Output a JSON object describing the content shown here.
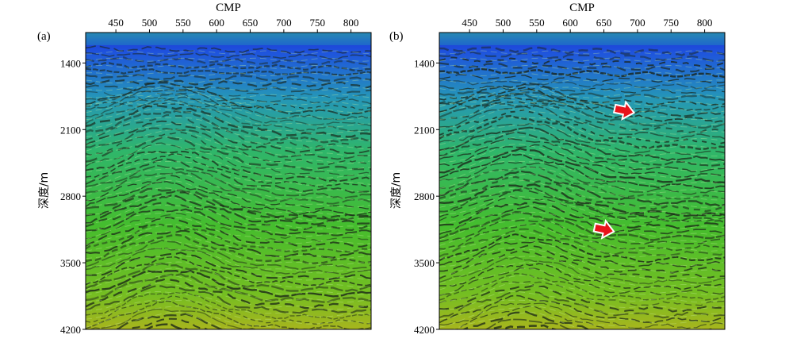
{
  "panels": [
    {
      "label": "(a)",
      "x_axis_title": "CMP",
      "x_ticks": [
        "450",
        "500",
        "550",
        "600",
        "650",
        "700",
        "750",
        "800"
      ],
      "x_tick_values": [
        450,
        500,
        550,
        600,
        650,
        700,
        750,
        800
      ],
      "x_range": [
        405,
        830
      ],
      "y_axis_title": "深度/m",
      "y_ticks": [
        "1400",
        "2100",
        "2800",
        "3500",
        "4200"
      ],
      "y_tick_values": [
        1400,
        2100,
        2800,
        3500,
        4200
      ],
      "y_range": [
        1080,
        4200
      ],
      "arrows": []
    },
    {
      "label": "(b)",
      "x_axis_title": "CMP",
      "x_ticks": [
        "450",
        "500",
        "550",
        "600",
        "650",
        "700",
        "750",
        "800"
      ],
      "x_tick_values": [
        450,
        500,
        550,
        600,
        650,
        700,
        750,
        800
      ],
      "x_range": [
        405,
        830
      ],
      "y_axis_title": "深度/m",
      "y_ticks": [
        "1400",
        "2100",
        "2800",
        "3500",
        "4200"
      ],
      "y_tick_values": [
        1400,
        2100,
        2800,
        3500,
        4200
      ],
      "y_range": [
        1080,
        4200
      ],
      "arrows": [
        {
          "cmp": 680,
          "depth": 1900,
          "color": "#e8141b",
          "direction": "right"
        },
        {
          "cmp": 650,
          "depth": 3150,
          "color": "#e8141b",
          "direction": "right"
        }
      ]
    }
  ]
}
